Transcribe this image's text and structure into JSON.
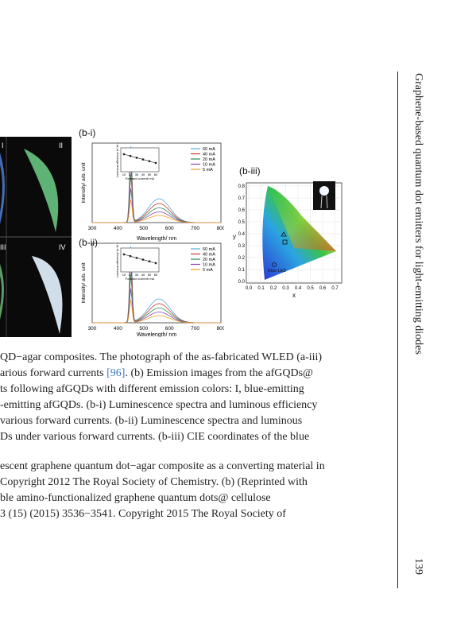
{
  "figure": {
    "photo_quadrants": [
      "I",
      "II",
      "III",
      "IV"
    ],
    "panels": {
      "b_i": "(b-i)",
      "b_ii": "(b-ii)",
      "b_iii": "(b-iii)"
    },
    "spectra": {
      "xlabel": "Wavelength/ nm",
      "ylabel": "Intensity/ arb. unit",
      "xticks": [
        "300",
        "400",
        "500",
        "600",
        "700",
        "800"
      ],
      "legend": [
        "60 mA",
        "40 mA",
        "20 mA",
        "10 mA",
        "5 mA"
      ],
      "inset_xlabel": "Forward current/ mA",
      "inset_ylabel": "Luminous efficiency/ lm·W⁻¹",
      "inset_xticks": [
        "10",
        "20",
        "30",
        "40",
        "50",
        "60"
      ],
      "colors": [
        "#5aa9d8",
        "#c0392b",
        "#2e8b57",
        "#8e44ad",
        "#f0a020"
      ]
    },
    "cie": {
      "xlabel": "x",
      "ylabel": "y",
      "xticks": [
        "0.0",
        "0.1",
        "0.2",
        "0.3",
        "0.4",
        "0.5",
        "0.6",
        "0.7"
      ],
      "yticks": [
        "0.0",
        "0.1",
        "0.2",
        "0.3",
        "0.4",
        "0.5",
        "0.6",
        "0.7",
        "0.8"
      ],
      "blue_led_label": "Blue LED"
    }
  },
  "caption": {
    "line1a": "QD−agar composites. The photograph of the as-fabricated WLED (a-iii)",
    "line2a": "arious forward currents ",
    "line2ref": "[96]",
    "line2b": ". (b) Emission images from the afGQDs@",
    "line3": "ts following afGQDs with different emission colors: I, blue-emitting",
    "line4": "-emitting afGQDs. (b-i) Luminescence spectra and luminous efficiency",
    "line5": "various forward currents. (b-ii) Luminescence spectra and luminous",
    "line6": "Ds under various forward currents. (b-iii) CIE coordinates of the blue"
  },
  "credit": {
    "line1": "escent graphene quantum dot−agar composite as a converting material in",
    "line2": "Copyright 2012 The Royal Society of Chemistry. (b) (Reprinted with",
    "line3": "ble amino-functionalized graphene quantum dots@ cellulose",
    "line4": "3 (15) (2015) 3536−3541. Copyright 2015 The Royal Society of"
  },
  "running_head": "Graphene-based quantum dot emitters for light-emitting diodes",
  "page_number": "139"
}
